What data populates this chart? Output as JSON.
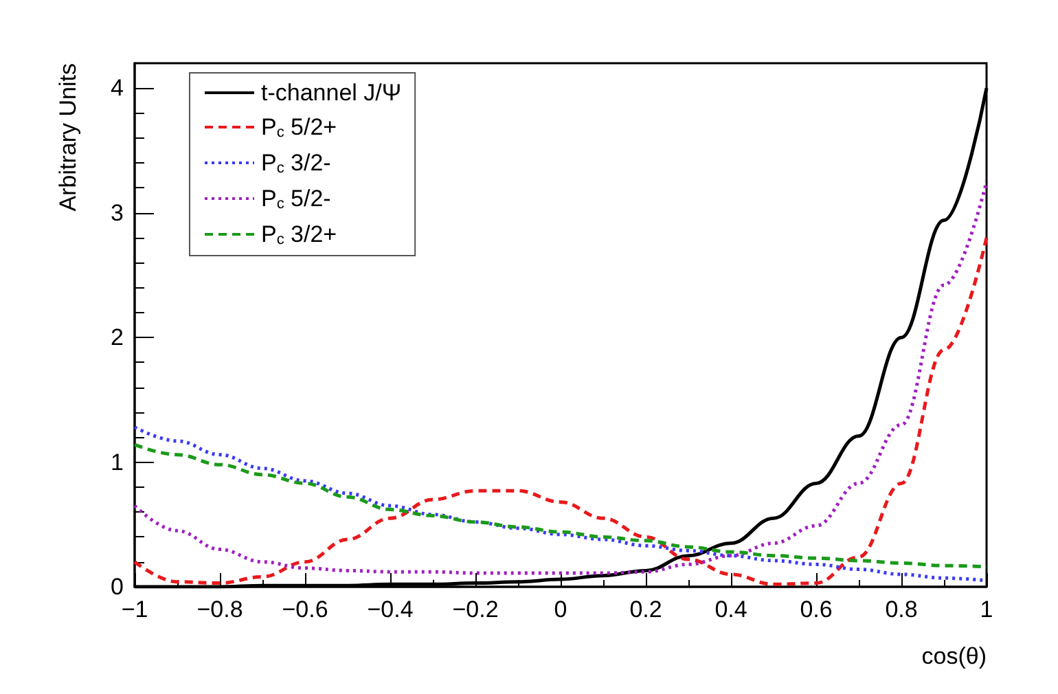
{
  "chart_data": {
    "type": "line",
    "xlabel": "cos(θ)",
    "ylabel": "Arbitrary Units",
    "x": [
      -1,
      -0.9,
      -0.8,
      -0.7,
      -0.6,
      -0.5,
      -0.4,
      -0.3,
      -0.2,
      -0.1,
      0,
      0.1,
      0.2,
      0.3,
      0.4,
      0.5,
      0.6,
      0.7,
      0.8,
      0.9,
      1
    ],
    "series": [
      {
        "name": "t-channel J/Ψ",
        "color": "#000000",
        "line_style": "solid",
        "values": [
          0,
          0,
          0,
          0.01,
          0.01,
          0.01,
          0.02,
          0.02,
          0.03,
          0.04,
          0.06,
          0.09,
          0.13,
          0.25,
          0.35,
          0.55,
          0.83,
          1.21,
          2.0,
          2.94,
          4.0
        ]
      },
      {
        "name": "P$_{c}$ 5/2+",
        "color": "#e8191c",
        "line_style": "dashed",
        "values": [
          0.2,
          0.04,
          0.03,
          0.08,
          0.2,
          0.38,
          0.55,
          0.7,
          0.77,
          0.77,
          0.68,
          0.55,
          0.4,
          0.22,
          0.1,
          0.02,
          0.03,
          0.24,
          0.83,
          1.9,
          2.8
        ]
      },
      {
        "name": "P$_{c}$ 3/2-",
        "color": "#3a3af5",
        "line_style": "dotted",
        "values": [
          1.28,
          1.17,
          1.06,
          0.95,
          0.85,
          0.75,
          0.65,
          0.58,
          0.52,
          0.47,
          0.42,
          0.38,
          0.33,
          0.29,
          0.25,
          0.21,
          0.18,
          0.14,
          0.1,
          0.07,
          0.05
        ]
      },
      {
        "name": "P$_{c}$ 5/2-",
        "color": "#a020c0",
        "line_style": "dotted",
        "values": [
          0.65,
          0.45,
          0.3,
          0.2,
          0.15,
          0.13,
          0.12,
          0.12,
          0.11,
          0.11,
          0.11,
          0.11,
          0.12,
          0.18,
          0.25,
          0.35,
          0.49,
          0.83,
          1.3,
          2.42,
          3.25
        ]
      },
      {
        "name": "P$_{c}$ 3/2+",
        "color": "#1a9a1a",
        "line_style": "dashed",
        "values": [
          1.14,
          1.06,
          0.98,
          0.9,
          0.83,
          0.72,
          0.62,
          0.57,
          0.52,
          0.48,
          0.44,
          0.4,
          0.37,
          0.32,
          0.28,
          0.25,
          0.23,
          0.21,
          0.19,
          0.17,
          0.16
        ]
      }
    ],
    "xlim": [
      -1,
      1
    ],
    "xticks": [
      -1,
      -0.8,
      -0.6,
      -0.4,
      -0.2,
      0,
      0.2,
      0.4,
      0.6,
      0.8,
      1
    ],
    "ylim": [
      0,
      4.2
    ],
    "yticks": [
      0,
      1,
      2,
      3,
      4
    ],
    "grid": false,
    "legend": "top left",
    "marker": "none"
  }
}
